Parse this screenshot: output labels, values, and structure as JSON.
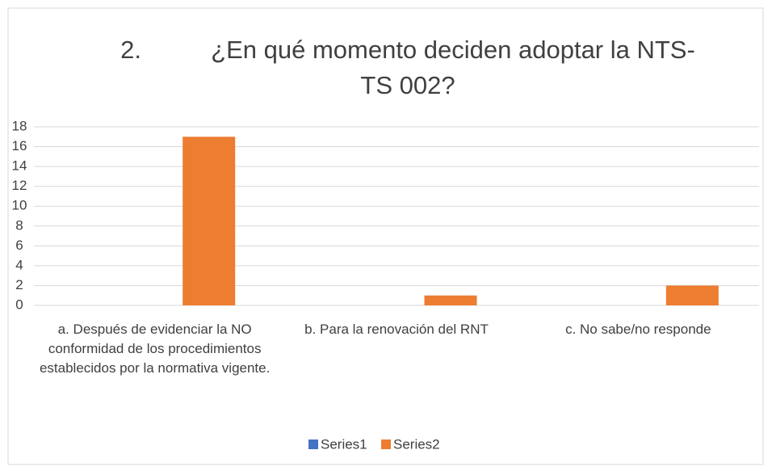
{
  "chart_data": {
    "type": "bar",
    "title": "2.          ¿En qué momento deciden adoptar la NTS-TS 002?",
    "categories": [
      "a. Después de evidenciar la NO conformidad de los procedimientos establecidos por la normativa vigente.",
      "b. Para la renovación del RNT",
      "c. No sabe/no responde"
    ],
    "series": [
      {
        "name": "Series1",
        "color": "#4472c4",
        "values": [
          0,
          0,
          0
        ]
      },
      {
        "name": "Series2",
        "color": "#ed7d31",
        "values": [
          17,
          1,
          2
        ]
      }
    ],
    "ylim": [
      0,
      18
    ],
    "yticks": [
      0,
      2,
      4,
      6,
      8,
      10,
      12,
      14,
      16,
      18
    ],
    "grid": true,
    "legend": "bottom"
  }
}
